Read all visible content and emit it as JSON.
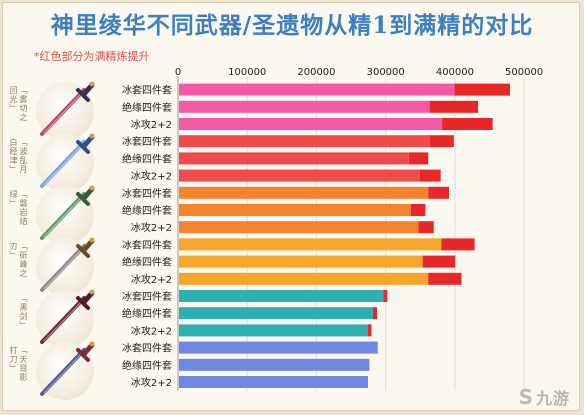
{
  "title": "神里绫华不同武器/圣遗物从精1到满精的对比",
  "note": "*红色部分为满精炼提升",
  "weapons": [
    {
      "label": "「雾切之回光」",
      "blade": "#c2496a",
      "hilt": "#2f3250"
    },
    {
      "label": "「波乱月白经津」",
      "blade": "#7aa0e6",
      "hilt": "#3a4a8a"
    },
    {
      "label": "「磐岩结绿」",
      "blade": "#5f9b6a",
      "hilt": "#3a5a40"
    },
    {
      "label": "「斫峰之刃」",
      "blade": "#8a8a8a",
      "hilt": "#6b4a2b"
    },
    {
      "label": "「黑剑」",
      "blade": "#7a2a3a",
      "hilt": "#4a1d28"
    },
    {
      "label": "「天目影打刀」",
      "blade": "#565a8a",
      "hilt": "#7a2a3a"
    }
  ],
  "watermark": "九游",
  "colors": {
    "increase": "#e8272b",
    "groups": [
      "#f25aa6",
      "#f04b4b",
      "#f3832f",
      "#f5a62b",
      "#2fb0b0",
      "#6f87e0"
    ],
    "grid": "#dddddd",
    "axis_text": "#222222"
  },
  "chart_data": {
    "type": "bar",
    "orientation": "horizontal",
    "stacked": true,
    "title": "",
    "xlim": [
      0,
      520000
    ],
    "xticks": [
      0,
      100000,
      200000,
      300000,
      400000,
      500000
    ],
    "grid": true,
    "categories": [
      "冰套四件套",
      "绝缘四件套",
      "冰攻2+2",
      "冰套四件套",
      "绝缘四件套",
      "冰攻2+2",
      "冰套四件套",
      "绝缘四件套",
      "冰攻2+2",
      "冰套四件套",
      "绝缘四件套",
      "冰攻2+2",
      "冰套四件套",
      "绝缘四件套",
      "冰攻2+2",
      "冰套四件套",
      "绝缘四件套",
      "冰攻2+2"
    ],
    "group_of_row": [
      0,
      0,
      0,
      1,
      1,
      1,
      2,
      2,
      2,
      3,
      3,
      3,
      4,
      4,
      4,
      5,
      5,
      5
    ],
    "series": [
      {
        "values": [
          398000,
          362000,
          380000,
          362000,
          332000,
          348000,
          360000,
          335000,
          346000,
          379000,
          352000,
          360000,
          295000,
          280000,
          273000,
          287000,
          275000,
          273000
        ]
      },
      {
        "values": [
          80000,
          70000,
          73000,
          35000,
          28000,
          30000,
          30000,
          21000,
          22000,
          48000,
          47000,
          48000,
          6000,
          6000,
          5000,
          0,
          0,
          0
        ]
      }
    ]
  }
}
